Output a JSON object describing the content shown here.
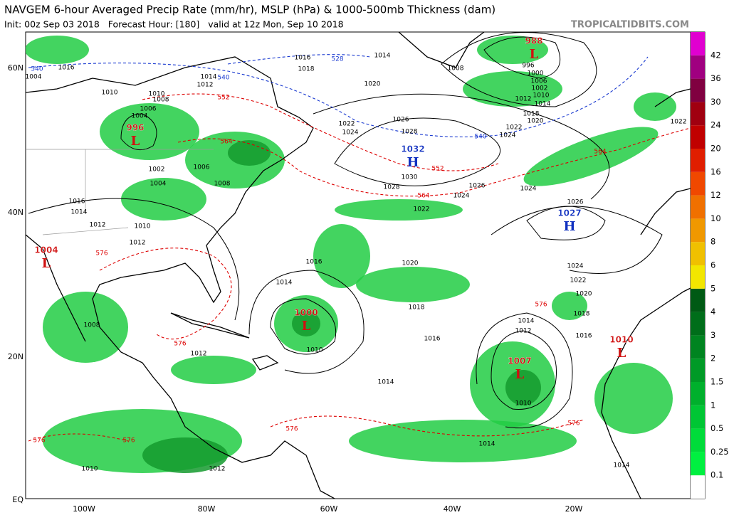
{
  "header": {
    "title": "NAVGEM 6-hour Averaged Precip Rate (mm/hr), MSLP (hPa) & 1000-500mb Thickness (dam)",
    "subtitle": "Init: 00z Sep 03 2018   Forecast Hour: [180]   valid at 12z Mon, Sep 10 2018",
    "credit": "TROPICALTIDBITS.COM"
  },
  "latitude_labels": [
    "60N",
    "40N",
    "20N",
    "EQ"
  ],
  "longitude_labels": [
    "100W",
    "80W",
    "60W",
    "40W",
    "20W"
  ],
  "colorbar": {
    "labels": [
      "0.1",
      "0.25",
      "0.5",
      "1",
      "1.5",
      "2",
      "3",
      "4",
      "5",
      "6",
      "8",
      "10",
      "12",
      "16",
      "20",
      "24",
      "30",
      "36",
      "42"
    ],
    "colors": [
      "#ffffff",
      "#00f040",
      "#00dc3a",
      "#00c634",
      "#00b02c",
      "#009a26",
      "#008420",
      "#006e1a",
      "#005a14",
      "#f2e600",
      "#f0c000",
      "#f09800",
      "#f07000",
      "#f04800",
      "#e01e00",
      "#c00000",
      "#a00010",
      "#800040",
      "#a00080",
      "#e000d0"
    ]
  },
  "pressure_centers": [
    {
      "value": "996",
      "letter": "L"
    },
    {
      "value": "988",
      "letter": "L"
    },
    {
      "value": "1032",
      "letter": "H"
    },
    {
      "value": "1027",
      "letter": "H"
    },
    {
      "value": "1004",
      "letter": "L"
    },
    {
      "value": "1000",
      "letter": "L"
    },
    {
      "value": "1007",
      "letter": "L"
    },
    {
      "value": "1010",
      "letter": "L"
    }
  ],
  "contour_labels": [
    "1016",
    "528",
    "1014",
    "1018",
    "1008",
    "1020",
    "996",
    "1000",
    "1006",
    "1002",
    "1010",
    "1012",
    "1014",
    "1018",
    "1020",
    "1022",
    "1024",
    "540",
    "1026",
    "1028",
    "1024",
    "1022",
    "1030",
    "552",
    "1028",
    "1026",
    "1024",
    "1024",
    "564",
    "1022",
    "564",
    "1026",
    "1020",
    "1024",
    "1022",
    "1020",
    "1018",
    "1016",
    "576",
    "1016",
    "1014",
    "1018",
    "1016",
    "1014",
    "1014",
    "1012",
    "1010",
    "1010",
    "1014",
    "576",
    "576",
    "1014",
    "1010",
    "1012",
    "576",
    "576",
    "1012",
    "576",
    "1008",
    "576",
    "1012",
    "1012",
    "1014",
    "1016",
    "1010",
    "1002",
    "1004",
    "1006",
    "1008",
    "564",
    "1004",
    "1006",
    "1008",
    "1010",
    "1012",
    "552",
    "1014",
    "540",
    "1010",
    "1016",
    "1004",
    "540",
    "1022"
  ]
}
